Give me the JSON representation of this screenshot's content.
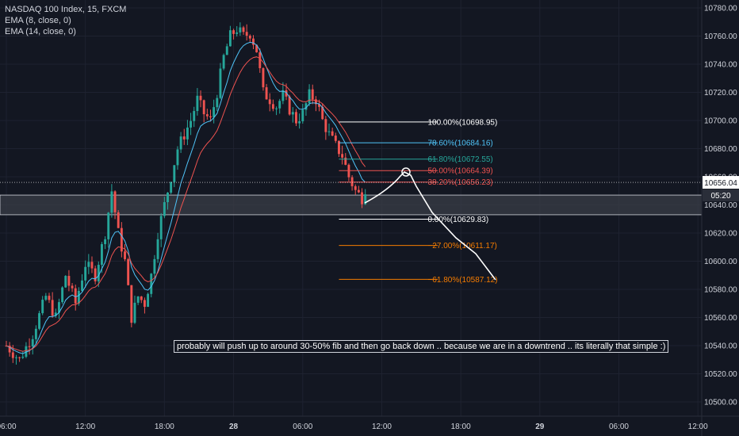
{
  "legend": {
    "title": "NASDAQ 100 Index, 15, FXCM",
    "ema8": "EMA (8, close, 0)",
    "ema14": "EMA (14, close, 0)"
  },
  "annotation": "probably will push up to around 30-50% fib and then go back down .. because we are in a downtrend .. its literally that simple :)",
  "price_badge": {
    "price": "10656.04",
    "countdown": "05:20"
  },
  "colors": {
    "background": "#131722",
    "up": "#26a69a",
    "down": "#ef5350",
    "ema8": "#4fc3f7",
    "ema14": "#ef5350",
    "grid": "#1e2230",
    "badge": "#ffffff"
  },
  "chart_data": {
    "type": "candlestick",
    "symbol": "NASDAQ 100 Index",
    "interval": "15",
    "source": "FXCM",
    "ylim": [
      10490,
      10790
    ],
    "y_ticks": [
      10500,
      10520,
      10540,
      10560,
      10580,
      10600,
      10620,
      10640,
      10660,
      10680,
      10700,
      10720,
      10740,
      10760,
      10780
    ],
    "x_ticks": [
      "06:00",
      "12:00",
      "18:00",
      "28",
      "06:00",
      "12:00",
      "18:00",
      "29",
      "06:00",
      "12:00"
    ],
    "close_path": [
      [
        0,
        10540
      ],
      [
        4,
        10530
      ],
      [
        8,
        10548
      ],
      [
        12,
        10575
      ],
      [
        15,
        10560
      ],
      [
        18,
        10590
      ],
      [
        21,
        10570
      ],
      [
        24,
        10598
      ],
      [
        27,
        10590
      ],
      [
        30,
        10620
      ],
      [
        32,
        10650
      ],
      [
        34,
        10620
      ],
      [
        36,
        10600
      ],
      [
        38,
        10560
      ],
      [
        40,
        10575
      ],
      [
        42,
        10570
      ],
      [
        44,
        10590
      ],
      [
        46,
        10620
      ],
      [
        48,
        10640
      ],
      [
        50,
        10660
      ],
      [
        52,
        10680
      ],
      [
        54,
        10690
      ],
      [
        56,
        10700
      ],
      [
        58,
        10715
      ],
      [
        60,
        10705
      ],
      [
        62,
        10700
      ],
      [
        64,
        10720
      ],
      [
        66,
        10745
      ],
      [
        68,
        10760
      ],
      [
        70,
        10765
      ],
      [
        72,
        10760
      ],
      [
        74,
        10762
      ],
      [
        76,
        10750
      ],
      [
        78,
        10720
      ],
      [
        80,
        10715
      ],
      [
        82,
        10710
      ],
      [
        84,
        10718
      ],
      [
        86,
        10708
      ],
      [
        88,
        10700
      ],
      [
        90,
        10705
      ],
      [
        92,
        10718
      ],
      [
        94,
        10715
      ],
      [
        96,
        10700
      ],
      [
        98,
        10690
      ],
      [
        100,
        10682
      ],
      [
        102,
        10675
      ],
      [
        104,
        10660
      ],
      [
        106,
        10650
      ],
      [
        108,
        10645
      ],
      [
        109,
        10652
      ]
    ],
    "x_domain_bars": [
      0,
      222
    ],
    "x_tick_bars": [
      0,
      24,
      48,
      69,
      90,
      114,
      138,
      162,
      186,
      210
    ],
    "fib_levels": [
      {
        "label": "100.00%(10698.95)",
        "value": 10698.95,
        "color": "#ffffff"
      },
      {
        "label": "78.60%(10684.16)",
        "value": 10684.16,
        "color": "#4fc3f7"
      },
      {
        "label": "61.80%(10672.55)",
        "value": 10672.55,
        "color": "#26a69a"
      },
      {
        "label": "50.00%(10664.39)",
        "value": 10664.39,
        "color": "#ef5350"
      },
      {
        "label": "38.20%(10656.23)",
        "value": 10656.23,
        "color": "#ef5350"
      },
      {
        "label": "0.00%(10629.83)",
        "value": 10629.83,
        "color": "#ffffff"
      },
      {
        "label": "−27.00%(10611.17)",
        "value": 10611.17,
        "color": "#f57c00"
      },
      {
        "label": "−61.80%(10587.12)",
        "value": 10587.12,
        "color": "#f57c00"
      }
    ],
    "fib_bar_range": [
      101,
      131
    ],
    "current_price": 10656.04,
    "zone": [
      10633,
      10647
    ]
  }
}
